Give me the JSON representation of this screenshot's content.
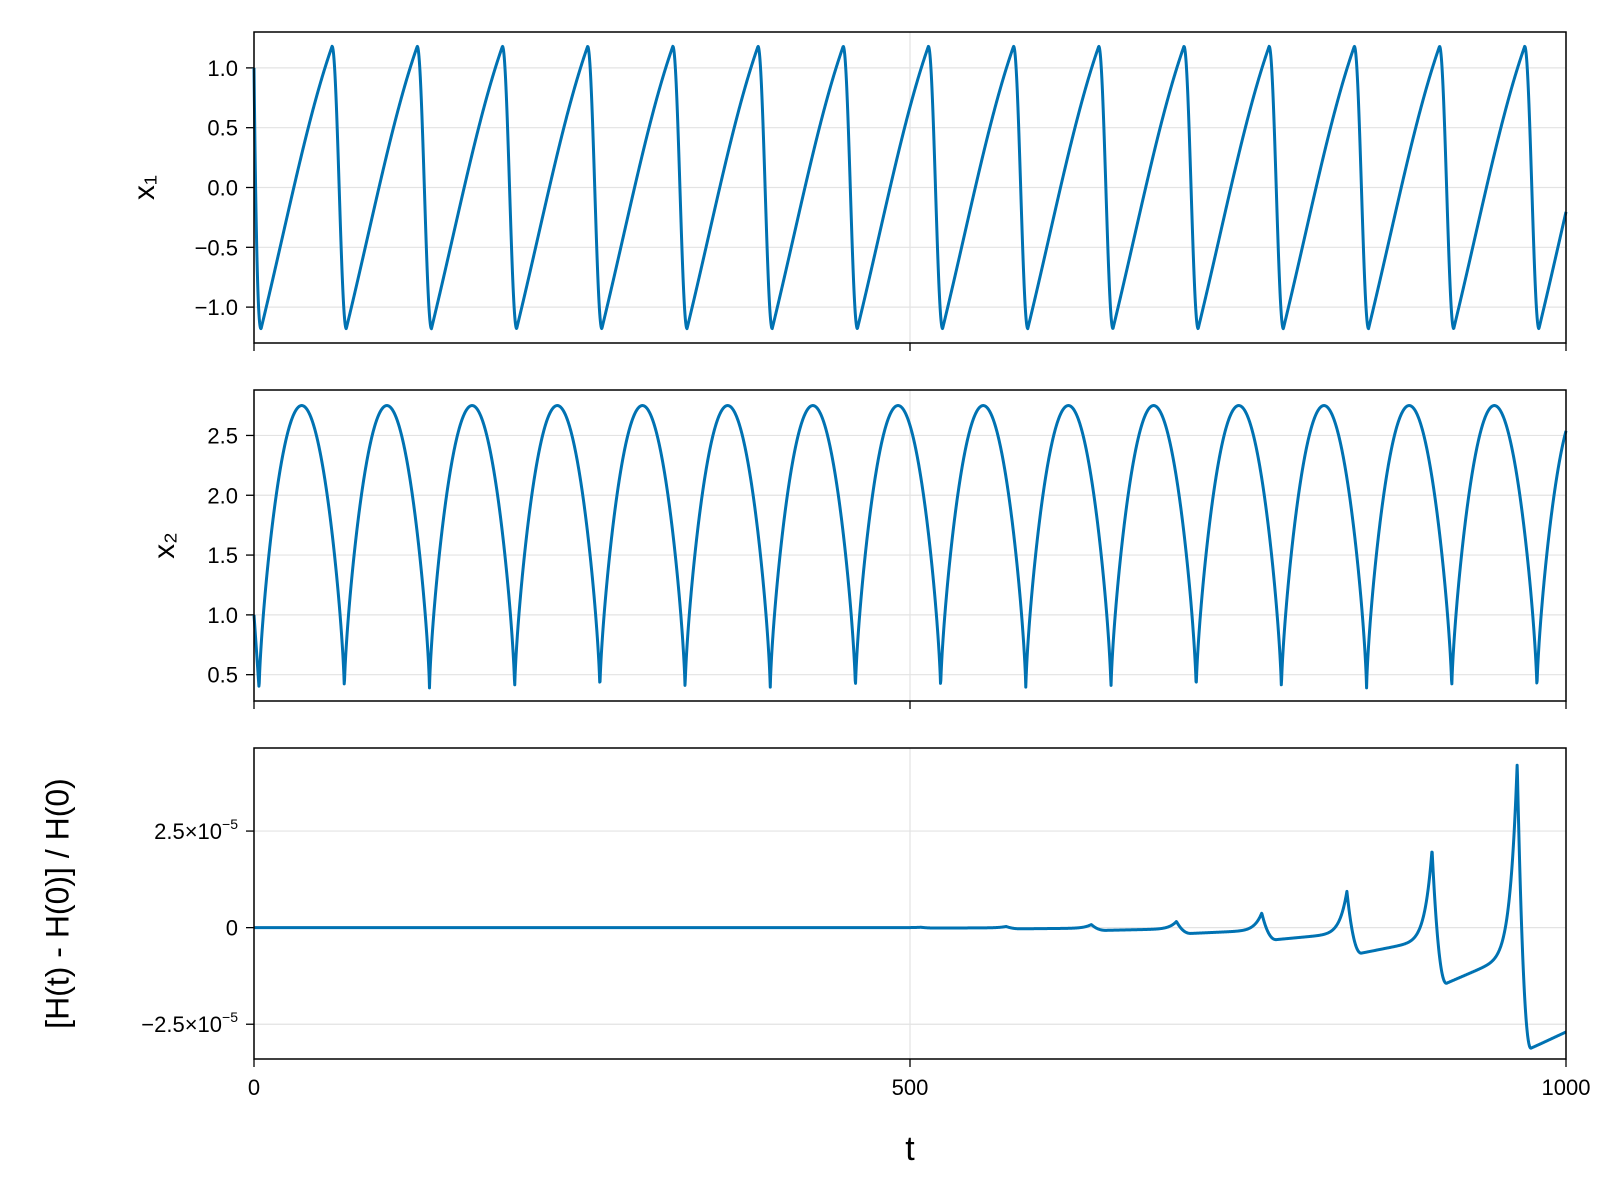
{
  "colors": {
    "series": "#0072B2",
    "grid": "#e3e3e3",
    "frame": "#000000",
    "background": "#ffffff"
  },
  "chart_data": [
    {
      "type": "line",
      "panel": "top",
      "ylabel": "x₁",
      "xlim": [
        0,
        1000
      ],
      "ylim": [
        -1.3,
        1.3
      ],
      "xticks": [
        0,
        500,
        1000
      ],
      "xtick_labels_visible": false,
      "yticks": [
        1.0,
        0.5,
        0.0,
        -0.5,
        -1.0
      ],
      "ytick_labels": [
        "1.0",
        "0.5",
        "0.0",
        "−0.5",
        "−1.0"
      ],
      "grid": true,
      "series": [
        {
          "curve": "relaxation-oscillation",
          "period": 64.93,
          "cycles": 15.4,
          "x_max_time_in_cycle": 59.5,
          "x_min_time_in_cycle": 5.4,
          "max": 1.18,
          "min": -1.18,
          "start_value": 1.0,
          "end_value": -0.35
        }
      ]
    },
    {
      "type": "line",
      "panel": "middle",
      "ylabel": "x₂",
      "xlim": [
        0,
        1000
      ],
      "ylim": [
        0.28,
        2.88
      ],
      "xticks": [
        0,
        500,
        1000
      ],
      "xtick_labels_visible": false,
      "yticks": [
        2.5,
        2.0,
        1.5,
        1.0,
        0.5
      ],
      "ytick_labels": [
        "2.5",
        "2.0",
        "1.5",
        "1.0",
        "0.5"
      ],
      "grid": true,
      "series": [
        {
          "curve": "rectified-arch",
          "period": 64.93,
          "first_min_time": 3.9,
          "peak_time_in_cycle": 32.0,
          "max": 2.75,
          "min": 0.38,
          "start_value": 1.0,
          "end_value": 2.68
        }
      ]
    },
    {
      "type": "line",
      "panel": "bottom",
      "ylabel": "[H(t) - H(0)] / H(0)",
      "xlabel": "t",
      "xlim": [
        0,
        1000
      ],
      "ylim": [
        -3.4e-05,
        4.65e-05
      ],
      "xticks": [
        0,
        500,
        1000
      ],
      "xtick_labels": [
        "0",
        "500",
        "1000"
      ],
      "yticks": [
        2.5e-05,
        0,
        -2.5e-05
      ],
      "ytick_labels": [
        {
          "mantissa": "2.5×10",
          "exp": "−5"
        },
        {
          "mantissa": "0",
          "exp": ""
        },
        {
          "mantissa": "−2.5×10",
          "exp": "−5"
        }
      ],
      "grid": true,
      "series": [
        {
          "curve": "spiky-drift",
          "spike_times": [
            118.8,
            183.7,
            248.6,
            313.6,
            378.5,
            443.4,
            508.3,
            573.3,
            638.2,
            703.1,
            768.1,
            833.0,
            897.9,
            962.8
          ],
          "spike_peaks": [
            0,
            0,
            0,
            0,
            0,
            0,
            1e-07,
            3e-07,
            8e-07,
            1.6e-06,
            3.8e-06,
            9.4e-06,
            2.02e-05,
            4.25e-05
          ],
          "post_spike_dips": [
            0,
            0,
            0,
            0,
            0,
            0,
            -1e-07,
            -3e-07,
            -7e-07,
            -1.5e-06,
            -3.1e-06,
            -6.6e-06,
            -1.44e-05,
            -3.12e-05
          ],
          "end_value": -2.7e-05
        }
      ]
    }
  ]
}
